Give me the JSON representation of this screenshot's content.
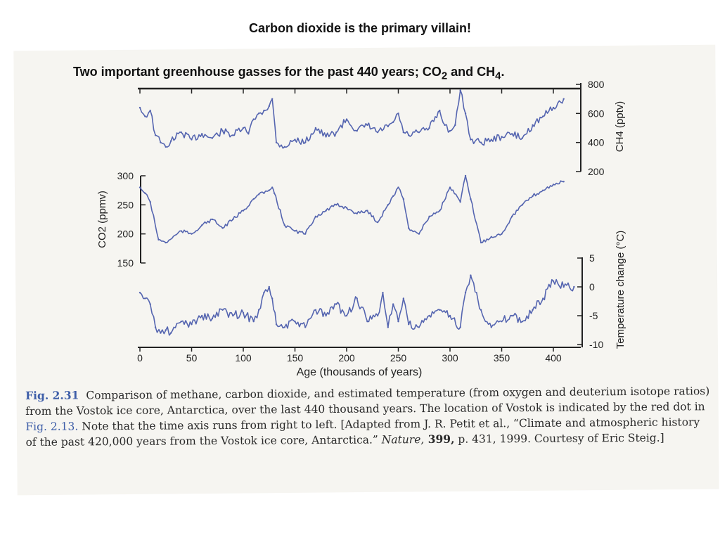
{
  "slide": {
    "title": "Carbon dioxide is the primary villain!",
    "subtitle_text": "Two important greenhouse gasses for the past 440 years; CO",
    "subtitle_sub1": "2",
    "subtitle_and": " and CH",
    "subtitle_sub2": "4",
    "subtitle_end": "."
  },
  "colors": {
    "series": "#5565b0",
    "axis": "#222222",
    "figlabel": "#3e5ea8",
    "paper": "#f6f5f1"
  },
  "chart_data": [
    {
      "type": "line",
      "name": "methane",
      "ylabel": "CH4 (pptv)",
      "ylim": [
        200,
        800
      ],
      "yticks": [
        "800",
        "600",
        "400",
        "200"
      ],
      "xlim": [
        0,
        420
      ],
      "x": [
        0,
        5,
        10,
        15,
        20,
        25,
        30,
        40,
        50,
        60,
        70,
        80,
        90,
        100,
        105,
        110,
        115,
        120,
        125,
        128,
        132,
        140,
        150,
        160,
        170,
        180,
        190,
        200,
        210,
        220,
        230,
        240,
        245,
        250,
        255,
        260,
        270,
        280,
        290,
        295,
        300,
        305,
        310,
        315,
        320,
        330,
        340,
        350,
        360,
        370,
        380,
        390,
        400,
        410
      ],
      "values": [
        640,
        580,
        620,
        450,
        400,
        370,
        410,
        470,
        420,
        460,
        430,
        480,
        450,
        500,
        460,
        560,
        600,
        620,
        650,
        700,
        400,
        370,
        420,
        400,
        500,
        440,
        470,
        560,
        480,
        520,
        470,
        510,
        540,
        600,
        470,
        450,
        470,
        500,
        620,
        520,
        480,
        520,
        760,
        600,
        420,
        400,
        420,
        440,
        460,
        430,
        520,
        580,
        640,
        700
      ]
    },
    {
      "type": "line",
      "name": "carbon dioxide",
      "ylabel": "CO2 (ppmv)",
      "ylim": [
        150,
        300
      ],
      "yticks": [
        "300",
        "250",
        "200",
        "150"
      ],
      "xlim": [
        0,
        420
      ],
      "x": [
        0,
        5,
        10,
        18,
        25,
        40,
        50,
        60,
        70,
        80,
        90,
        100,
        110,
        115,
        120,
        125,
        128,
        130,
        140,
        150,
        160,
        170,
        180,
        190,
        200,
        210,
        220,
        230,
        240,
        245,
        250,
        255,
        260,
        270,
        280,
        290,
        300,
        310,
        315,
        320,
        330,
        340,
        350,
        360,
        370,
        380,
        390,
        400,
        410
      ],
      "values": [
        280,
        270,
        255,
        190,
        185,
        205,
        200,
        215,
        225,
        210,
        225,
        240,
        260,
        268,
        270,
        275,
        280,
        270,
        215,
        205,
        200,
        230,
        240,
        250,
        245,
        235,
        240,
        220,
        250,
        265,
        280,
        260,
        210,
        200,
        230,
        240,
        280,
        255,
        300,
        260,
        185,
        195,
        200,
        230,
        250,
        265,
        275,
        285,
        290
      ]
    },
    {
      "type": "line",
      "name": "temperature",
      "ylabel": "Temperature change (°C)",
      "ylim": [
        -10,
        5
      ],
      "yticks": [
        "5",
        "0",
        "-5",
        "-10"
      ],
      "xlim": [
        0,
        420
      ],
      "x": [
        0,
        5,
        10,
        15,
        20,
        25,
        30,
        40,
        50,
        60,
        70,
        80,
        90,
        100,
        110,
        115,
        120,
        125,
        128,
        132,
        140,
        150,
        160,
        170,
        180,
        190,
        200,
        210,
        220,
        230,
        235,
        240,
        245,
        250,
        255,
        260,
        270,
        280,
        290,
        300,
        310,
        315,
        320,
        330,
        340,
        350,
        360,
        370,
        380,
        390,
        400,
        410,
        420
      ],
      "values": [
        -1,
        -2,
        -3,
        -7,
        -8,
        -7.5,
        -8,
        -6,
        -6.5,
        -5,
        -5.5,
        -4,
        -5,
        -4.5,
        -6,
        -4,
        -1,
        0,
        -2,
        -6.5,
        -7,
        -6,
        -7,
        -4,
        -5,
        -3,
        -5,
        -2,
        -6,
        -5,
        -1,
        -7,
        -3,
        -6,
        -2,
        -6.5,
        -7,
        -5,
        -4,
        -5,
        -7,
        -1,
        2,
        -4,
        -7,
        -6,
        -5,
        -6,
        -4,
        -2,
        1,
        0,
        0
      ]
    }
  ],
  "axis": {
    "xticks": [
      "0",
      "50",
      "100",
      "150",
      "200",
      "250",
      "300",
      "350",
      "400"
    ],
    "xlabel": "Age (thousands of years)"
  },
  "caption": {
    "figlabel": "Fig. 2.31",
    "part1": "Comparison of methane, carbon dioxide, and estimated temperature (from oxygen and deuterium isotope ratios) from the Vostok ice core, Antarctica, over the last 440 thousand years. The location of Vostok is indicated by the red dot in ",
    "fig_ref": "Fig. 2.13.",
    "part2": " Note that the time axis runs from right to left. [Adapted from J. R. Petit et al., “Climate and atmospheric history of the past 420,000 years from the Vostok ice core, Antarctica.” ",
    "journal": "Nature,",
    "volume": " 399,",
    "part3": " p. 431, 1999. Courtesy of Eric Steig.]"
  }
}
